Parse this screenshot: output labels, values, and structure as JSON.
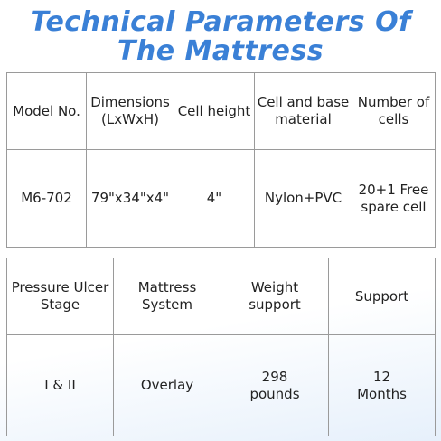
{
  "title": [
    "Technical Parameters Of",
    "The Mattress"
  ],
  "tables": [
    {
      "rows": [
        [
          "Model No.",
          "Dimensions\n(LxWxH)",
          "Cell height",
          "Cell and base\nmaterial",
          "Number of\ncells"
        ],
        [
          "M6-702",
          "79\"x34\"x4\"",
          "4\"",
          "Nylon+PVC",
          "20+1 Free\nspare cell"
        ]
      ]
    },
    {
      "rows": [
        [
          "Pressure Ulcer\nStage",
          "Mattress\nSystem",
          "Weight\nsupport",
          "Support"
        ],
        [
          "I & II",
          "Overlay",
          "298\npounds",
          "12\nMonths"
        ]
      ]
    }
  ]
}
